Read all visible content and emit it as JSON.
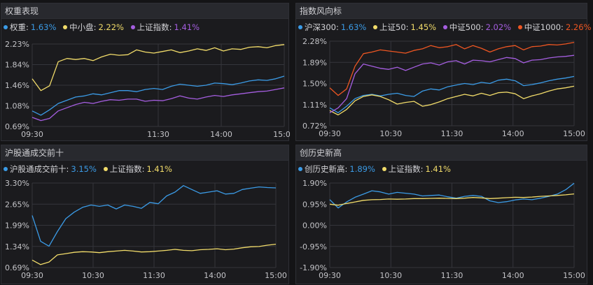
{
  "colors": {
    "blue": "#3b9be6",
    "yellow": "#f2dc6a",
    "purple": "#a55ee0",
    "red": "#ee5622",
    "grid": "#34353b"
  },
  "panels": [
    {
      "title": "权重表现",
      "legend": [
        {
          "name": "权重:",
          "value": "1.63%",
          "color": "#3b9be6"
        },
        {
          "name": "中小盘:",
          "value": "2.22%",
          "color": "#f2dc6a"
        },
        {
          "name": "上证指数:",
          "value": "1.41%",
          "color": "#a55ee0"
        }
      ]
    },
    {
      "title": "指数风向标",
      "legend": [
        {
          "name": "沪深300:",
          "value": "1.63%",
          "color": "#3b9be6"
        },
        {
          "name": "上证50:",
          "value": "1.45%",
          "color": "#f2dc6a"
        },
        {
          "name": "中证500:",
          "value": "2.02%",
          "color": "#a55ee0"
        },
        {
          "name": "中证1000:",
          "value": "2.26%",
          "color": "#ee5622"
        }
      ]
    },
    {
      "title": "沪股通成交前十",
      "legend": [
        {
          "name": "沪股通成交前十:",
          "value": "3.15%",
          "color": "#3b9be6"
        },
        {
          "name": "上证指数:",
          "value": "1.41%",
          "color": "#f2dc6a"
        }
      ]
    },
    {
      "title": "创历史新高",
      "legend": [
        {
          "name": "创历史新高:",
          "value": "1.89%",
          "color": "#3b9be6"
        },
        {
          "name": "上证指数:",
          "value": "1.41%",
          "color": "#f2dc6a"
        }
      ]
    }
  ],
  "chart_data": [
    {
      "type": "line",
      "title": "权重表现",
      "xticks": [
        "09:30",
        "11:30",
        "14:00",
        "15:00"
      ],
      "yticks": [
        "2.23%",
        "1.84%",
        "1.46%",
        "1.08%",
        "0.69%"
      ],
      "ylim": [
        0.69,
        2.23
      ],
      "series": [
        {
          "name": "权重",
          "color": "#3b9be6",
          "values": [
            0.98,
            0.9,
            1.0,
            1.12,
            1.18,
            1.24,
            1.26,
            1.3,
            1.28,
            1.32,
            1.36,
            1.36,
            1.34,
            1.38,
            1.4,
            1.38,
            1.44,
            1.48,
            1.46,
            1.44,
            1.46,
            1.5,
            1.49,
            1.47,
            1.5,
            1.54,
            1.56,
            1.55,
            1.58,
            1.63
          ]
        },
        {
          "name": "中小盘",
          "color": "#f2dc6a",
          "values": [
            1.58,
            1.36,
            1.45,
            1.9,
            1.96,
            1.94,
            1.96,
            1.92,
            1.99,
            2.04,
            2.02,
            2.03,
            2.12,
            2.08,
            2.06,
            2.09,
            2.12,
            2.07,
            2.1,
            2.14,
            2.11,
            2.16,
            2.1,
            2.14,
            2.13,
            2.17,
            2.18,
            2.16,
            2.2,
            2.22
          ]
        },
        {
          "name": "上证指数",
          "color": "#a55ee0",
          "values": [
            0.86,
            0.8,
            0.84,
            0.98,
            1.04,
            1.1,
            1.14,
            1.12,
            1.16,
            1.19,
            1.18,
            1.2,
            1.2,
            1.16,
            1.18,
            1.17,
            1.21,
            1.26,
            1.22,
            1.2,
            1.24,
            1.27,
            1.25,
            1.28,
            1.3,
            1.32,
            1.34,
            1.35,
            1.38,
            1.41
          ]
        }
      ]
    },
    {
      "type": "line",
      "title": "指数风向标",
      "xticks": [
        "09:30",
        "10:30",
        "11:30",
        "14:00",
        "15:00"
      ],
      "yticks": [
        "2.28%",
        "1.89%",
        "1.50%",
        "1.11%",
        "0.72%"
      ],
      "ylim": [
        0.72,
        2.28
      ],
      "series": [
        {
          "name": "沪深300",
          "color": "#3b9be6",
          "values": [
            1.05,
            0.96,
            1.08,
            1.22,
            1.28,
            1.3,
            1.27,
            1.3,
            1.32,
            1.28,
            1.26,
            1.36,
            1.4,
            1.38,
            1.44,
            1.47,
            1.5,
            1.48,
            1.52,
            1.5,
            1.56,
            1.58,
            1.55,
            1.46,
            1.48,
            1.51,
            1.55,
            1.58,
            1.6,
            1.63
          ]
        },
        {
          "name": "上证50",
          "color": "#f2dc6a",
          "values": [
            1.0,
            0.92,
            1.02,
            1.18,
            1.26,
            1.29,
            1.26,
            1.2,
            1.12,
            1.15,
            1.17,
            1.08,
            1.11,
            1.16,
            1.22,
            1.26,
            1.3,
            1.27,
            1.32,
            1.28,
            1.33,
            1.34,
            1.31,
            1.22,
            1.27,
            1.31,
            1.36,
            1.4,
            1.42,
            1.45
          ]
        },
        {
          "name": "中证500",
          "color": "#a55ee0",
          "values": [
            0.96,
            1.05,
            1.22,
            1.68,
            1.86,
            1.82,
            1.78,
            1.76,
            1.8,
            1.74,
            1.8,
            1.86,
            1.88,
            1.84,
            1.9,
            1.92,
            1.86,
            1.93,
            1.92,
            1.9,
            1.94,
            1.98,
            1.96,
            1.88,
            1.93,
            1.94,
            1.97,
            1.99,
            2.0,
            2.02
          ]
        },
        {
          "name": "中证1000",
          "color": "#ee5622",
          "values": [
            1.42,
            1.28,
            1.4,
            1.82,
            2.05,
            2.08,
            2.12,
            2.1,
            2.08,
            2.06,
            2.11,
            2.14,
            2.2,
            2.16,
            2.18,
            2.22,
            2.14,
            2.2,
            2.15,
            2.08,
            2.14,
            2.18,
            2.2,
            2.12,
            2.18,
            2.19,
            2.22,
            2.21,
            2.23,
            2.26
          ]
        }
      ]
    },
    {
      "type": "line",
      "title": "沪股通成交前十",
      "xticks": [
        "09:30",
        "10:30",
        "11:30",
        "14:00",
        "15:00"
      ],
      "yticks": [
        "3.30%",
        "2.65%",
        "1.99%",
        "1.34%",
        "0.69%"
      ],
      "ylim": [
        0.69,
        3.3
      ],
      "series": [
        {
          "name": "沪股通成交前十",
          "color": "#3b9be6",
          "values": [
            2.3,
            1.5,
            1.35,
            1.8,
            2.2,
            2.4,
            2.55,
            2.62,
            2.58,
            2.62,
            2.5,
            2.62,
            2.58,
            2.52,
            2.7,
            2.66,
            2.9,
            3.02,
            3.22,
            3.1,
            2.98,
            3.02,
            3.06,
            2.96,
            2.98,
            3.1,
            3.14,
            3.18,
            3.16,
            3.15
          ]
        },
        {
          "name": "上证指数",
          "color": "#f2dc6a",
          "values": [
            0.92,
            0.78,
            0.86,
            1.08,
            1.12,
            1.16,
            1.18,
            1.17,
            1.15,
            1.18,
            1.2,
            1.22,
            1.2,
            1.17,
            1.18,
            1.2,
            1.22,
            1.25,
            1.22,
            1.21,
            1.24,
            1.25,
            1.27,
            1.24,
            1.26,
            1.3,
            1.33,
            1.34,
            1.38,
            1.41
          ]
        }
      ]
    },
    {
      "type": "line",
      "title": "创历史新高",
      "xticks": [
        "09:30",
        "10:30",
        "11:30",
        "14:00",
        "15:00"
      ],
      "yticks": [
        "1.90%",
        "0.95%",
        "0.00%",
        "-0.95%",
        "-1.90%"
      ],
      "ylim": [
        -1.9,
        1.9
      ],
      "series": [
        {
          "name": "创历史新高",
          "color": "#3b9be6",
          "values": [
            1.15,
            0.78,
            1.05,
            1.26,
            1.4,
            1.55,
            1.5,
            1.4,
            1.48,
            1.44,
            1.4,
            1.32,
            1.34,
            1.36,
            1.28,
            1.22,
            1.3,
            1.34,
            1.3,
            1.1,
            1.02,
            1.06,
            1.14,
            1.18,
            1.15,
            1.22,
            1.3,
            1.4,
            1.6,
            1.89
          ]
        },
        {
          "name": "上证指数",
          "color": "#f2dc6a",
          "values": [
            0.95,
            0.9,
            0.98,
            1.05,
            1.12,
            1.15,
            1.16,
            1.18,
            1.17,
            1.18,
            1.2,
            1.2,
            1.21,
            1.22,
            1.21,
            1.2,
            1.22,
            1.25,
            1.23,
            1.2,
            1.22,
            1.24,
            1.26,
            1.25,
            1.27,
            1.3,
            1.32,
            1.34,
            1.37,
            1.41
          ]
        }
      ]
    }
  ]
}
